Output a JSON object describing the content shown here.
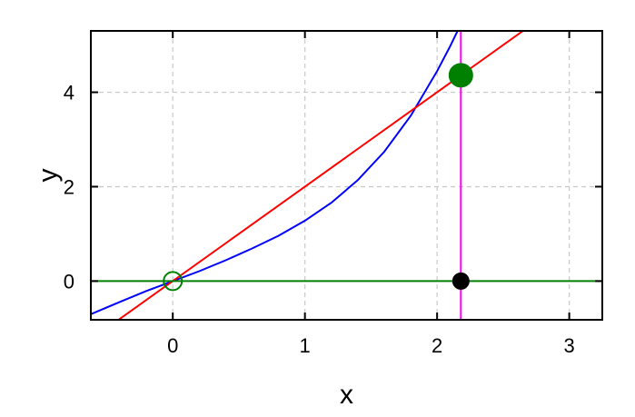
{
  "chart_data": {
    "type": "line",
    "xlabel": "x",
    "ylabel": "y",
    "xlim": [
      -0.62,
      3.25
    ],
    "ylim": [
      -0.82,
      5.3
    ],
    "x_ticks": [
      0,
      1,
      2,
      3
    ],
    "y_ticks": [
      0,
      2,
      4
    ],
    "x_tick_labels": [
      "0",
      "1",
      "2",
      "3"
    ],
    "y_tick_labels": [
      "0",
      "2",
      "4"
    ],
    "grid": true,
    "series": [
      {
        "style": "curve",
        "color": "#0000ff",
        "x": [
          -0.62,
          -0.4,
          -0.2,
          0,
          0.2,
          0.4,
          0.6,
          0.8,
          1.0,
          1.2,
          1.4,
          1.6,
          1.8,
          2.0,
          2.1,
          2.2,
          2.3,
          2.38
        ],
        "y": [
          -0.7,
          -0.44,
          -0.21,
          0.0,
          0.21,
          0.44,
          0.69,
          0.96,
          1.28,
          1.66,
          2.14,
          2.74,
          3.5,
          4.45,
          4.98,
          5.56,
          6.18,
          6.6
        ]
      },
      {
        "style": "line",
        "color": "#ff0000",
        "x": [
          -0.62,
          3.25
        ],
        "y": [
          -1.24,
          6.5
        ]
      },
      {
        "style": "line",
        "color": "#008000",
        "x": [
          -0.62,
          3.25
        ],
        "y": [
          0,
          0
        ]
      },
      {
        "style": "vline",
        "color": "#ff00ff",
        "x": [
          2.18,
          2.18
        ],
        "y": [
          -0.82,
          5.3
        ]
      }
    ],
    "points": [
      {
        "x": 0,
        "y": 0,
        "color": "#008000",
        "fill": "none"
      },
      {
        "x": 2.18,
        "y": 4.36,
        "color": "#008000",
        "fill": "#008000"
      },
      {
        "x": 2.18,
        "y": 0,
        "color": "#000000",
        "fill": "#000000"
      }
    ]
  }
}
